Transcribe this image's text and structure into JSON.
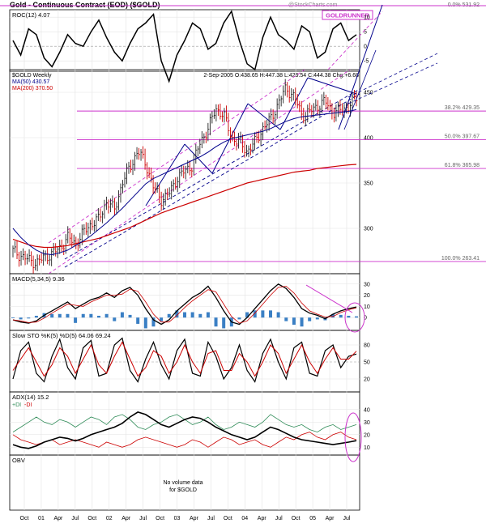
{
  "header": {
    "title": "Gold - Continuous Contract (EOD) ($GOLD)",
    "watermark": "@StockCharts.com",
    "badge": "GOLDRUNNER",
    "top_fib": "0.0% 531.92"
  },
  "roc": {
    "label": "ROC(12) 4.07",
    "ticks": [
      "10",
      "5",
      "0",
      "-5"
    ]
  },
  "price": {
    "symbol_label": "$GOLD Weekly",
    "ma50_label": "MA(50) 430.57",
    "ma200_label": "MA(200) 370.50",
    "ohlc_label": "2-Sep-2005 O:438.65 H:447.38 L:429.54 C:444.38 Chg:+6.68",
    "ticks": [
      "450",
      "400",
      "350",
      "300"
    ],
    "fib_labels": [
      "38.2% 429.35",
      "50.0% 397.67",
      "61.8% 365.98",
      "100.0% 263.41"
    ]
  },
  "macd": {
    "label": "MACD(5,34,5) 9.36",
    "ticks": [
      "30",
      "20",
      "10",
      "0"
    ]
  },
  "sto": {
    "label": "Slow STO %K(5) %D(5) 64.06 69.24",
    "ticks": [
      "80",
      "50",
      "20"
    ]
  },
  "adx": {
    "label": "ADX(14) 15.2",
    "legend_plus": "+DI",
    "legend_minus": "-DI",
    "ticks": [
      "40",
      "30",
      "20",
      "10"
    ]
  },
  "obv": {
    "label": "OBV",
    "note_line1": "No volume data",
    "note_line2": "for $GOLD"
  },
  "xaxis": {
    "labels": [
      "Oct",
      "01",
      "Apr",
      "Jul",
      "Oct",
      "02",
      "Apr",
      "Jul",
      "Oct",
      "03",
      "Apr",
      "Jul",
      "Oct",
      "04",
      "Apr",
      "Jul",
      "Oct",
      "05",
      "Apr",
      "Jul"
    ]
  },
  "colors": {
    "ma50": "#00008b",
    "ma200": "#cc0000",
    "fib": "#cc33cc",
    "macd_hist": "#3a7fc4",
    "up": "#222222",
    "down": "#cc0000",
    "plus_di": "#2e8b57",
    "minus_di": "#cc0000"
  },
  "chart_data": [
    {
      "type": "line",
      "panel": "ROC",
      "series": [
        {
          "name": "ROC(12)",
          "values": [
            2,
            -3,
            6,
            4,
            -4,
            -7,
            -2,
            4,
            1,
            0,
            5,
            9,
            3,
            -2,
            -5,
            1,
            6,
            8,
            11,
            -5,
            -12,
            -3,
            2,
            8,
            6,
            -1,
            1,
            8,
            12,
            2,
            -6,
            -8,
            3,
            10,
            4,
            2,
            -1,
            7,
            5,
            -4,
            -2,
            6,
            8,
            2,
            4
          ]
        }
      ],
      "ylim": [
        -8,
        12
      ]
    },
    {
      "type": "line",
      "panel": "Price",
      "title": "Gold - Continuous Contract (EOD) ($GOLD)",
      "series": [
        {
          "name": "$GOLD Weekly",
          "values": [
            275,
            270,
            265,
            262,
            268,
            272,
            278,
            290,
            283,
            295,
            305,
            310,
            330,
            320,
            350,
            368,
            385,
            372,
            345,
            332,
            338,
            355,
            363,
            370,
            395,
            410,
            432,
            425,
            400,
            395,
            385,
            395,
            410,
            420,
            438,
            455,
            445,
            425,
            428,
            435,
            440,
            428,
            430,
            435,
            444
          ]
        },
        {
          "name": "MA(50)",
          "values": [
            300,
            290,
            282,
            276,
            272,
            271,
            273,
            276,
            281,
            286,
            292,
            299,
            306,
            314,
            322,
            331,
            340,
            349,
            355,
            359,
            363,
            367,
            371,
            375,
            379,
            384,
            390,
            395,
            399,
            401,
            403,
            405,
            407,
            410,
            414,
            418,
            421,
            423,
            424,
            425,
            426,
            427,
            428,
            429,
            431
          ]
        },
        {
          "name": "MA(200)",
          "values": [
            288,
            285,
            282,
            280,
            279,
            279,
            280,
            281,
            283,
            285,
            287,
            289,
            292,
            295,
            298,
            301,
            305,
            309,
            313,
            317,
            320,
            323,
            326,
            329,
            332,
            335,
            338,
            341,
            344,
            347,
            350,
            352,
            354,
            356,
            358,
            360,
            362,
            363,
            364,
            366,
            367,
            368,
            369,
            370,
            370.5
          ]
        }
      ],
      "fib_levels": [
        {
          "label": "0.0%",
          "value": 531.92
        },
        {
          "label": "38.2%",
          "value": 429.35
        },
        {
          "label": "50.0%",
          "value": 397.67
        },
        {
          "label": "61.8%",
          "value": 365.98
        },
        {
          "label": "100.0%",
          "value": 263.41
        }
      ],
      "ylim": [
        250,
        475
      ]
    },
    {
      "type": "line",
      "panel": "MACD",
      "series": [
        {
          "name": "MACD(5,34,5)",
          "values": [
            -2,
            -4,
            -5,
            -3,
            2,
            6,
            10,
            14,
            8,
            12,
            16,
            18,
            22,
            18,
            24,
            27,
            20,
            8,
            -2,
            -6,
            -2,
            6,
            12,
            18,
            22,
            28,
            18,
            6,
            -4,
            -6,
            0,
            8,
            16,
            24,
            30,
            26,
            18,
            8,
            4,
            2,
            -1,
            3,
            6,
            8,
            9.4
          ]
        }
      ],
      "ylim": [
        -10,
        32
      ]
    },
    {
      "type": "line",
      "panel": "Slow STO",
      "series": [
        {
          "name": "%K(5)",
          "values": [
            20,
            70,
            85,
            30,
            15,
            60,
            90,
            40,
            20,
            75,
            88,
            25,
            30,
            80,
            92,
            35,
            15,
            55,
            85,
            45,
            20,
            70,
            90,
            30,
            25,
            85,
            60,
            20,
            40,
            80,
            35,
            15,
            65,
            90,
            50,
            20,
            75,
            85,
            30,
            25,
            70,
            80,
            40,
            60,
            64
          ]
        },
        {
          "name": "%D(5)",
          "values": [
            35,
            55,
            75,
            50,
            25,
            45,
            75,
            60,
            30,
            55,
            80,
            45,
            30,
            60,
            85,
            55,
            25,
            40,
            70,
            60,
            30,
            50,
            80,
            50,
            30,
            65,
            70,
            35,
            35,
            65,
            50,
            25,
            50,
            80,
            65,
            30,
            55,
            80,
            50,
            30,
            55,
            75,
            55,
            55,
            69
          ]
        }
      ],
      "ylim": [
        0,
        100
      ]
    },
    {
      "type": "line",
      "panel": "ADX",
      "series": [
        {
          "name": "ADX(14)",
          "values": [
            12,
            10,
            9,
            11,
            14,
            16,
            18,
            17,
            15,
            17,
            20,
            22,
            24,
            26,
            29,
            34,
            38,
            36,
            32,
            28,
            26,
            29,
            32,
            34,
            33,
            30,
            26,
            23,
            20,
            18,
            16,
            18,
            22,
            26,
            24,
            21,
            18,
            16,
            15,
            14,
            13,
            12,
            13,
            14,
            15.2
          ]
        },
        {
          "name": "+DI",
          "values": [
            22,
            26,
            30,
            34,
            30,
            28,
            32,
            30,
            26,
            30,
            34,
            32,
            28,
            34,
            36,
            32,
            26,
            24,
            28,
            30,
            34,
            36,
            32,
            28,
            30,
            34,
            28,
            24,
            26,
            30,
            28,
            26,
            30,
            36,
            32,
            28,
            26,
            28,
            24,
            22,
            26,
            28,
            24,
            26,
            28
          ]
        },
        {
          "name": "-DI",
          "values": [
            20,
            16,
            14,
            12,
            14,
            16,
            12,
            14,
            16,
            14,
            12,
            10,
            14,
            12,
            10,
            12,
            16,
            18,
            16,
            14,
            12,
            10,
            12,
            16,
            14,
            10,
            14,
            18,
            16,
            12,
            14,
            16,
            12,
            10,
            14,
            18,
            16,
            20,
            22,
            18,
            16,
            20,
            22,
            18,
            16
          ]
        }
      ],
      "ylim": [
        5,
        45
      ]
    }
  ]
}
